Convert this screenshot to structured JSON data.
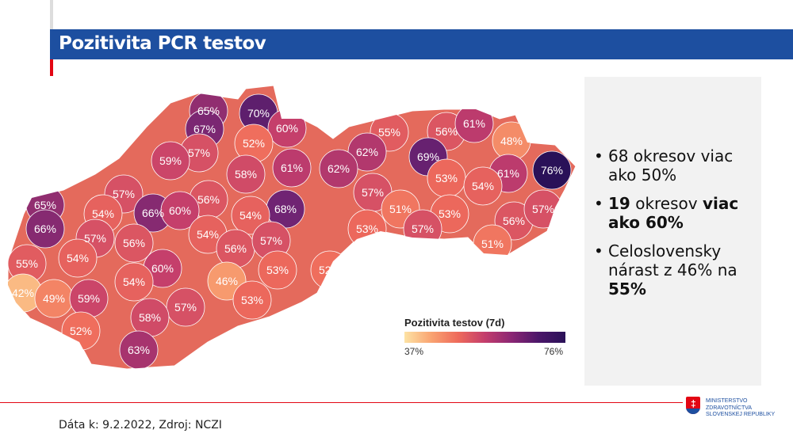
{
  "title": "Pozitivita PCR testov",
  "map": {
    "legend_title": "Pozitivita testov (7d)",
    "legend_min": "37%",
    "legend_max": "76%",
    "scale_min": 37,
    "scale_max": 76,
    "district_values": [
      65,
      70,
      67,
      60,
      55,
      56,
      61,
      48,
      52,
      57,
      59,
      76,
      69,
      62,
      58,
      61,
      62,
      61,
      53,
      54,
      57,
      56,
      57,
      65,
      66,
      60,
      68,
      54,
      54,
      51,
      53,
      56,
      57,
      66,
      57,
      56,
      54,
      53,
      57,
      51,
      55,
      54,
      56,
      57,
      60,
      53,
      52,
      54,
      46,
      42,
      49,
      59,
      53,
      57,
      58,
      52,
      63
    ]
  },
  "bullets": [
    [
      {
        "t": "68 okresov viac ako 50%",
        "b": false
      }
    ],
    [
      {
        "t": "19",
        "b": true
      },
      {
        "t": " okresov ",
        "b": false
      },
      {
        "t": "viac ako 60%",
        "b": true
      }
    ],
    [
      {
        "t": "Celoslovensky nárast z 46% na ",
        "b": false
      },
      {
        "t": "55%",
        "b": true
      }
    ]
  ],
  "footer": "Dáta k: 9.2.2022, Zdroj: NCZI",
  "logo": {
    "line1": "MINISTERSTVO",
    "line2": "ZDRAVOTNÍCTVA",
    "line3": "SLOVENSKEJ REPUBLIKY"
  }
}
